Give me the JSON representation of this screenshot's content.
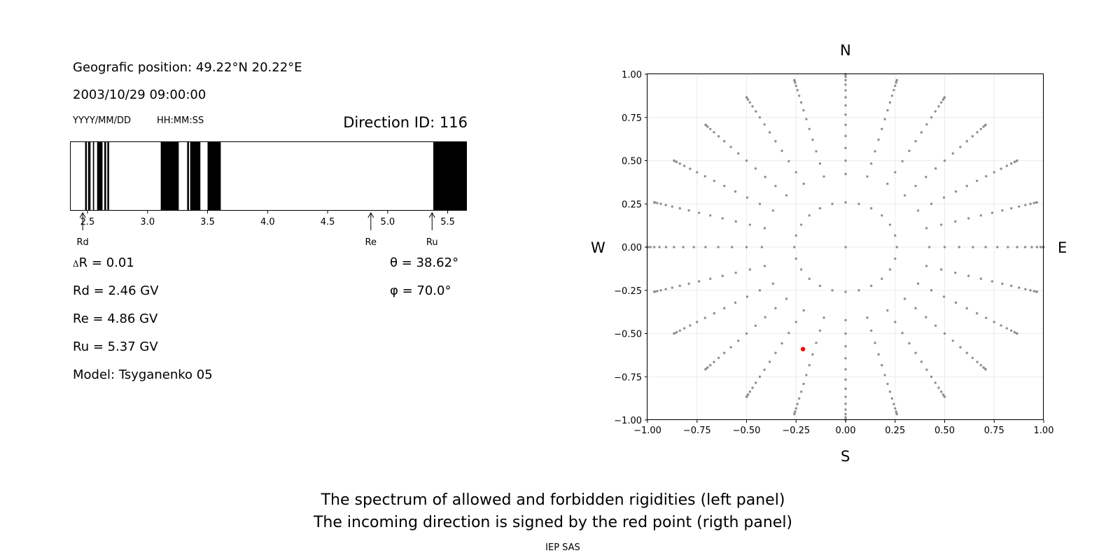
{
  "header": {
    "position": "Geografic position: 49.22°N 20.22°E",
    "datetime": "2003/10/29 09:00:00",
    "date_format": "YYYY/MM/DD",
    "time_format": "HH:MM:SS",
    "direction_id": "Direction ID: 116"
  },
  "params": {
    "delta_symbol": "Δ",
    "delta_r": "R = 0.01",
    "rd": "Rd = 2.46 GV",
    "re": "Re = 4.86 GV",
    "ru": "Ru = 5.37 GV",
    "model": "Model: Tsyganenko 05",
    "theta": "θ = 38.62°",
    "phi": "φ = 70.0°"
  },
  "captions": {
    "line1": "The spectrum of allowed and forbidden rigidities (left panel)",
    "line2": "The incoming direction is signed by the red point (rigth panel)",
    "credit": "IEP SAS"
  },
  "compass": {
    "north": "N",
    "south": "S",
    "west": "W",
    "east": "E"
  },
  "chart_data": [
    {
      "type": "bar",
      "name": "rigidity spectrum",
      "x_range": [
        2.36,
        5.66
      ],
      "x_ticks": [
        "2.5",
        "3.0",
        "3.5",
        "4.0",
        "4.5",
        "5.0",
        "5.5"
      ],
      "forbidden_bands": [
        [
          2.48,
          2.495
        ],
        [
          2.505,
          2.525
        ],
        [
          2.545,
          2.555
        ],
        [
          2.58,
          2.625
        ],
        [
          2.64,
          2.655
        ],
        [
          2.665,
          2.68
        ],
        [
          3.11,
          3.26
        ],
        [
          3.33,
          3.345
        ],
        [
          3.355,
          3.44
        ],
        [
          3.5,
          3.61
        ],
        [
          5.38,
          5.66
        ]
      ],
      "markers": [
        {
          "label": "Rd",
          "value": 2.46
        },
        {
          "label": "Re",
          "value": 4.86
        },
        {
          "label": "Ru",
          "value": 5.37
        }
      ],
      "colors": {
        "forbidden": "#000000",
        "allowed": "#ffffff"
      }
    },
    {
      "type": "scatter",
      "name": "incoming directions",
      "xlim": [
        -1,
        1
      ],
      "ylim": [
        -1,
        1
      ],
      "x_ticks": [
        "−1.00",
        "−0.75",
        "−0.50",
        "−0.25",
        "0.00",
        "0.25",
        "0.50",
        "0.75",
        "1.00"
      ],
      "y_ticks": [
        "1.00",
        "0.75",
        "0.50",
        "0.25",
        "0.00",
        "−0.25",
        "−0.50",
        "−0.75",
        "−1.00"
      ],
      "grid": true,
      "direction_grid": {
        "zenith_deg": [
          0,
          15,
          25,
          30,
          35,
          40,
          45,
          50,
          55,
          60,
          65,
          70,
          75,
          80,
          85,
          90
        ],
        "azimuth_step_deg": 15,
        "radius_rule": "sin(zenith)",
        "color": "#909090"
      },
      "highlight": {
        "x": -0.215,
        "y": -0.59,
        "color": "#ff0000"
      }
    }
  ]
}
